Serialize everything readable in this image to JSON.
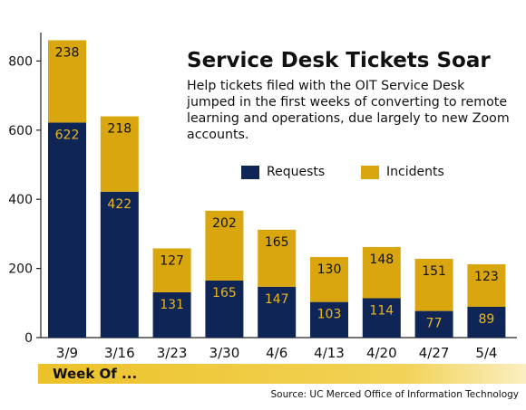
{
  "chart_data": {
    "type": "bar",
    "stacked": true,
    "title": "Service Desk Tickets Soar",
    "subtitle": "Help tickets filed with the OIT Service Desk jumped in the first weeks of converting to remote learning and operations, due largely to new Zoom accounts.",
    "xlabel": "Week Of ...",
    "ylabel": "",
    "categories": [
      "3/9",
      "3/16",
      "3/23",
      "3/30",
      "4/6",
      "4/13",
      "4/20",
      "4/27",
      "5/4"
    ],
    "series": [
      {
        "name": "Requests",
        "color": "#0f2556",
        "values": [
          622,
          422,
          131,
          165,
          147,
          103,
          114,
          77,
          89
        ]
      },
      {
        "name": "Incidents",
        "color": "#d9a60f",
        "values": [
          238,
          218,
          127,
          202,
          165,
          130,
          148,
          151,
          123
        ]
      }
    ],
    "ylim": [
      0,
      900
    ],
    "yticks": [
      0,
      200,
      400,
      600,
      800
    ],
    "grid": false,
    "legend_position": "top-right",
    "source": "Source: UC Merced Office of Information Technology"
  }
}
